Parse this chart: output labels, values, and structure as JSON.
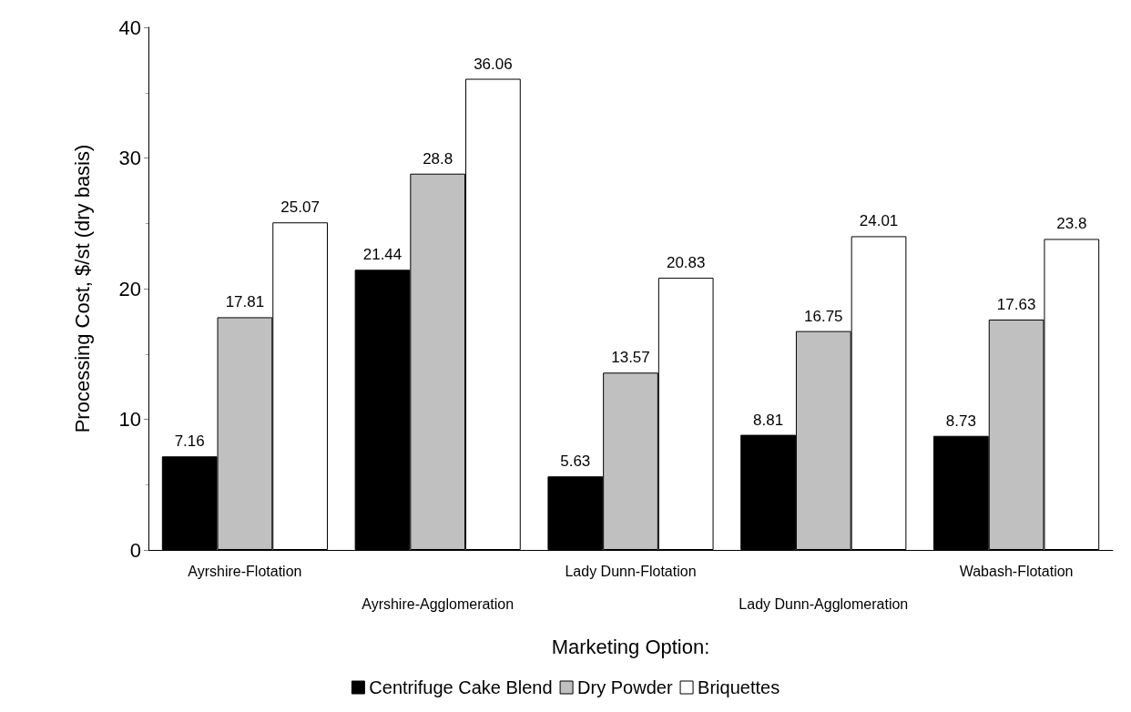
{
  "chart_data": {
    "type": "bar",
    "xlabel": "Marketing Option:",
    "ylabel": "Processing Cost, $/st (dry basis)",
    "categories": [
      "Ayrshire-Flotation",
      "Ayrshire-Agglomeration",
      "Lady Dunn-Flotation",
      "Lady Dunn-Agglomeration",
      "Wabash-Flotation"
    ],
    "series": [
      {
        "name": "Centrifuge Cake Blend",
        "color": "#000000",
        "values": [
          7.16,
          21.44,
          5.63,
          8.81,
          8.73
        ]
      },
      {
        "name": "Dry Powder",
        "color": "#c0c0c0",
        "values": [
          17.81,
          28.8,
          13.57,
          16.75,
          17.63
        ]
      },
      {
        "name": "Briquettes",
        "color": "#ffffff",
        "values": [
          25.07,
          36.06,
          20.83,
          24.01,
          23.8
        ]
      }
    ],
    "ylim": [
      0,
      40
    ],
    "yticks": [
      0,
      10,
      20,
      30,
      40
    ],
    "grid": false,
    "legend": "bottom",
    "data_labels": true
  }
}
